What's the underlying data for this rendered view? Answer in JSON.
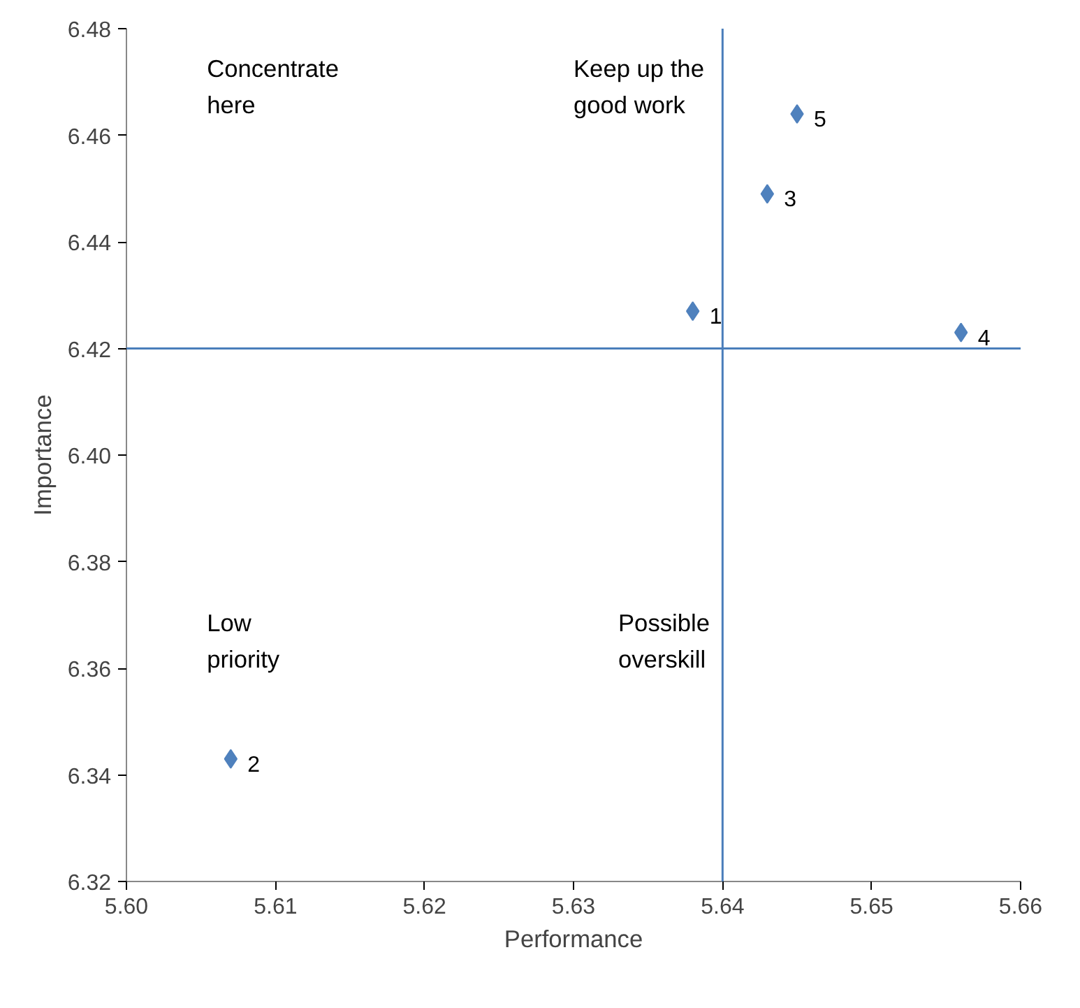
{
  "chart_data": {
    "type": "scatter",
    "xlabel": "Performance",
    "ylabel": "Importance",
    "x": [
      5.638,
      5.607,
      5.643,
      5.656,
      5.645
    ],
    "series": [
      {
        "color": "#4f81bd",
        "values": [
          6.427,
          6.343,
          6.449,
          6.423,
          6.464
        ]
      }
    ],
    "marker": "diamond",
    "grid": false,
    "xlim": [
      5.6,
      5.66
    ],
    "xticks": [
      {
        "value": 5.6,
        "label": "5.60"
      },
      5.61,
      5.62,
      5.63,
      5.64,
      5.65,
      {
        "value": 5.66,
        "label": "5.66"
      }
    ],
    "ylim": [
      6.32,
      6.48
    ],
    "yticks": [
      6.32,
      6.34,
      6.36,
      6.38,
      {
        "value": 6.4,
        "label": "6.40"
      },
      6.42,
      6.44,
      6.46,
      6.48
    ],
    "ref_lines": [
      {
        "axis": "x",
        "value": 5.64,
        "color": "#4a7ebb"
      },
      {
        "axis": "y",
        "value": 6.42,
        "color": "#4a7ebb"
      }
    ],
    "annotations": [
      {
        "text": "1",
        "x": 5.638,
        "y": 6.427
      },
      {
        "text": "2",
        "x": 5.607,
        "y": 6.343
      },
      {
        "text": "3",
        "x": 5.643,
        "y": 6.449
      },
      {
        "text": "4",
        "x": 5.656,
        "y": 6.423
      },
      {
        "text": "5",
        "x": 5.645,
        "y": 6.464
      },
      "Concentrate\nhere",
      "Keep up the\ngood work",
      "Low\npriority",
      "Possible\noverskill"
    ]
  }
}
